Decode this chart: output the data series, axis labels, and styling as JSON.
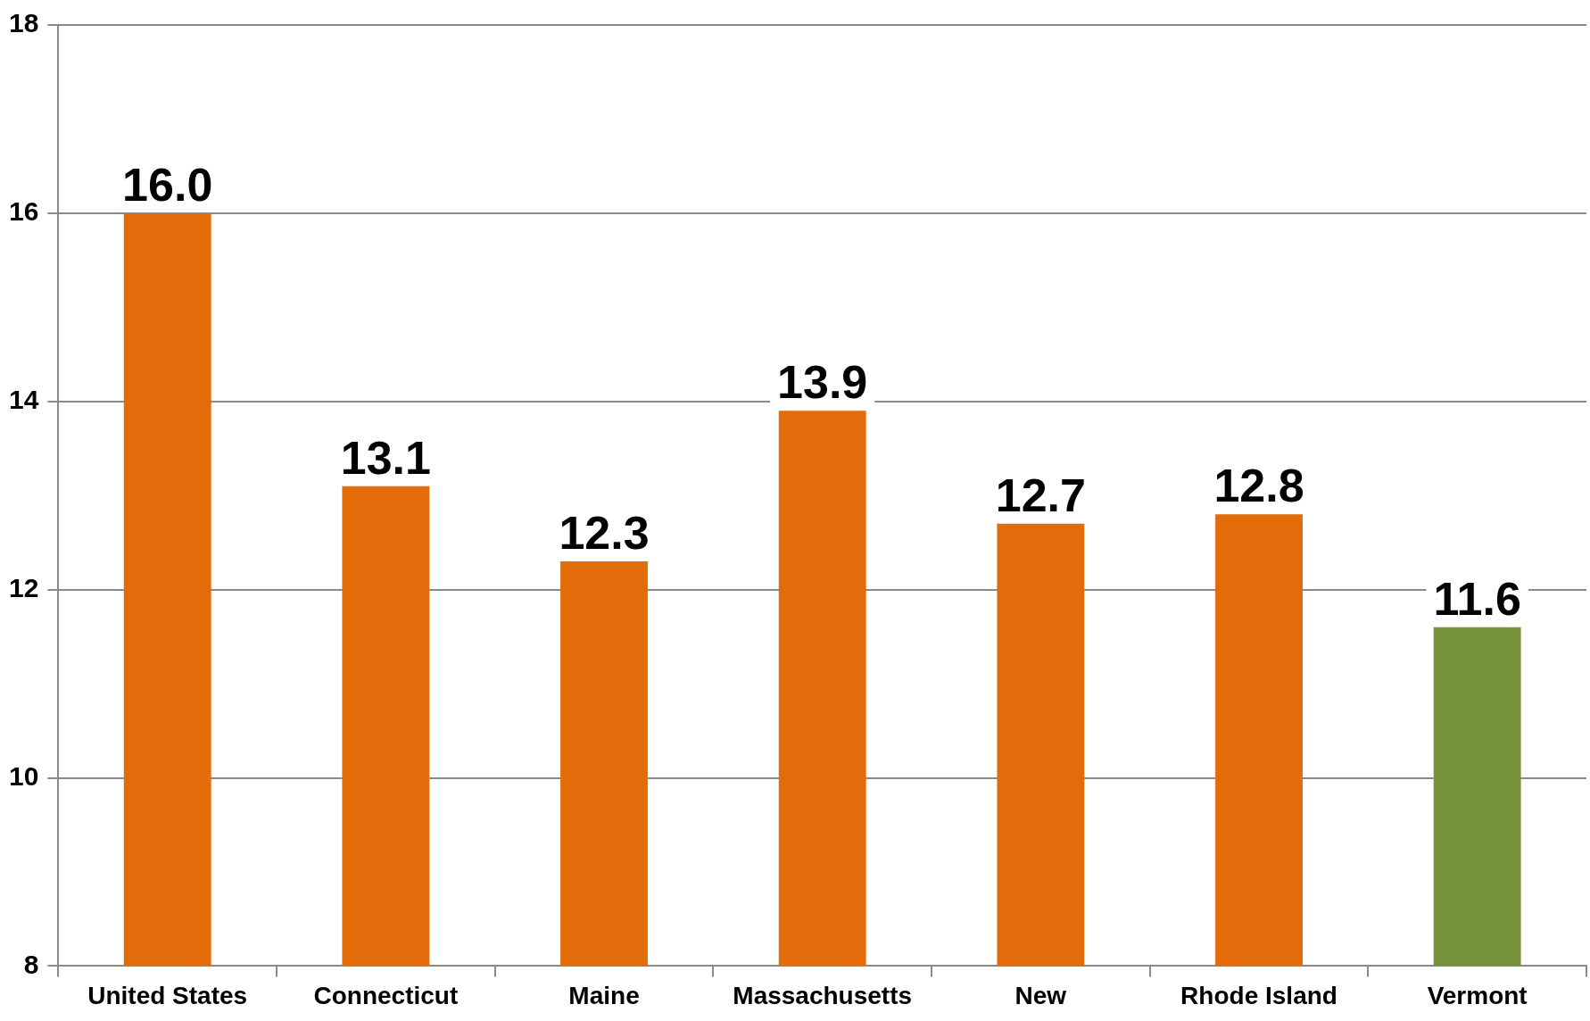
{
  "chart_data": {
    "type": "bar",
    "categories": [
      "United States",
      "Connecticut",
      "Maine",
      "Massachusetts",
      "New",
      "Rhode Island",
      "Vermont"
    ],
    "values": [
      16.0,
      13.1,
      12.3,
      13.9,
      12.7,
      12.8,
      11.6
    ],
    "value_labels": [
      "16.0",
      "13.1",
      "12.3",
      "13.9",
      "12.7",
      "12.8",
      "11.6"
    ],
    "colors": [
      "#e36c0a",
      "#e36c0a",
      "#e36c0a",
      "#e36c0a",
      "#e36c0a",
      "#e36c0a",
      "#77933c"
    ],
    "ylim": [
      8,
      18
    ],
    "yticks": [
      8,
      10,
      12,
      14,
      16,
      18
    ],
    "grid": "y"
  }
}
